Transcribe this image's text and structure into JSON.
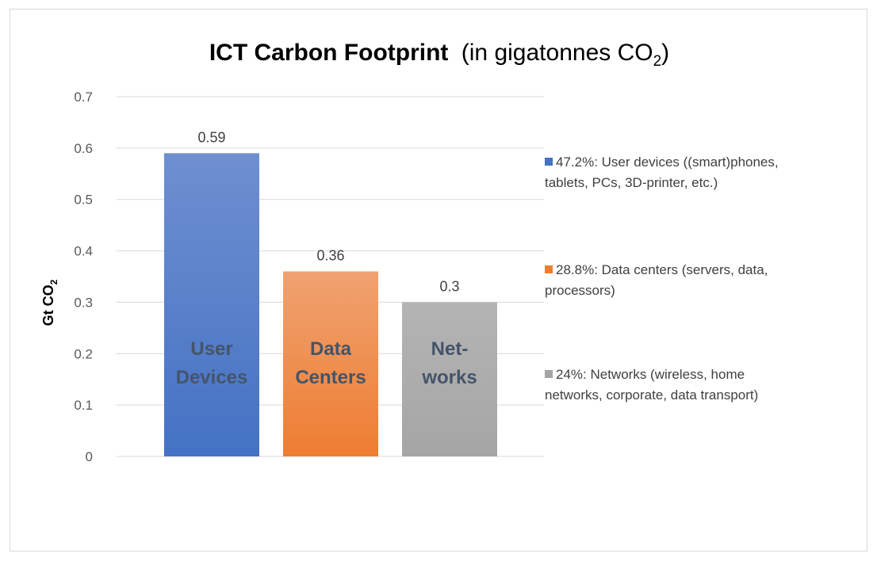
{
  "chart_data": {
    "type": "bar",
    "title_main": "ICT Carbon Footprint",
    "title_rest": "(in gigatonnes CO",
    "title_sub": "2",
    "title_close": ")",
    "ylabel_main": "Gt CO",
    "ylabel_sub": "2",
    "ylim": [
      0,
      0.7
    ],
    "yticks": [
      "0",
      "0.1",
      "0.2",
      "0.3",
      "0.4",
      "0.5",
      "0.6",
      "0.7"
    ],
    "grid": true,
    "legend_position": "right",
    "categories": [
      "User Devices",
      "Data Centers",
      "Networks"
    ],
    "bar_text": [
      [
        "User",
        "Devices"
      ],
      [
        "Data",
        "Centers"
      ],
      [
        "Net-",
        "works"
      ]
    ],
    "values": [
      0.59,
      0.36,
      0.3
    ],
    "value_labels": [
      "0.59",
      "0.36",
      "0.3"
    ],
    "colors": [
      "#4472c4",
      "#ed7d31",
      "#a5a5a5"
    ],
    "gradient_top": [
      "#6f8fd0",
      "#f0a271",
      "#b4b4b4"
    ],
    "legend": [
      {
        "lines": [
          "47.2%: User devices ((smart)phones,",
          "tablets, PCs, 3D-printer, etc.)"
        ]
      },
      {
        "lines": [
          "28.8%: Data centers (servers, data,",
          "processors)"
        ]
      },
      {
        "lines": [
          "24%: Networks (wireless, home",
          "networks, corporate, data transport)"
        ]
      }
    ]
  }
}
